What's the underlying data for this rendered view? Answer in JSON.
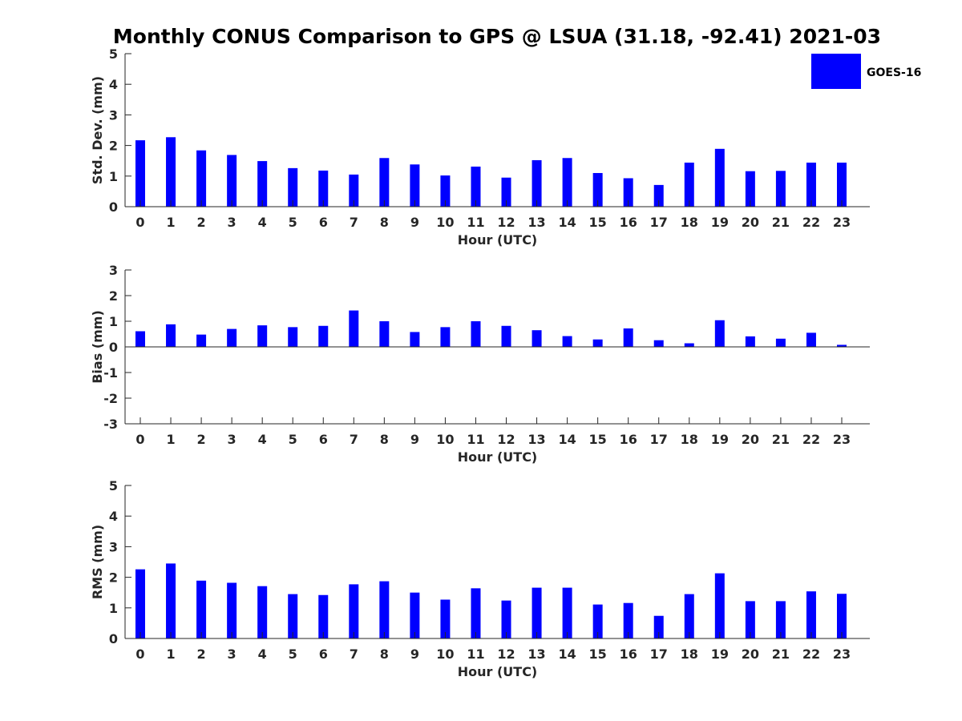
{
  "title": "Monthly CONUS Comparison to GPS @ LSUA (31.18, -92.41) 2021-03",
  "legend": {
    "label": "GOES-16",
    "placement": "top-right"
  },
  "colors": {
    "bar": "#0000ff",
    "axis": "#262626",
    "title": "#000000"
  },
  "chart_data": [
    {
      "type": "bar",
      "series": [
        {
          "name": "GOES-16",
          "values": [
            2.17,
            2.27,
            1.84,
            1.69,
            1.49,
            1.26,
            1.18,
            1.05,
            1.59,
            1.38,
            1.02,
            1.31,
            0.95,
            1.52,
            1.59,
            1.1,
            0.93,
            0.71,
            1.44,
            1.89,
            1.16,
            1.17,
            1.44,
            1.44
          ]
        }
      ],
      "categories": [
        "0",
        "1",
        "2",
        "3",
        "4",
        "5",
        "6",
        "7",
        "8",
        "9",
        "10",
        "11",
        "12",
        "13",
        "14",
        "15",
        "16",
        "17",
        "18",
        "19",
        "20",
        "21",
        "22",
        "23"
      ],
      "xlabel": "Hour (UTC)",
      "ylabel": "Std. Dev. (mm)",
      "ylim": [
        0,
        5
      ],
      "yticks": [
        "0",
        "1",
        "2",
        "3",
        "4",
        "5"
      ],
      "grid": false
    },
    {
      "type": "bar",
      "series": [
        {
          "name": "GOES-16",
          "values": [
            0.61,
            0.88,
            0.48,
            0.7,
            0.84,
            0.77,
            0.82,
            1.42,
            1.0,
            0.58,
            0.77,
            1.0,
            0.82,
            0.65,
            0.42,
            0.29,
            0.72,
            0.26,
            0.14,
            1.04,
            0.41,
            0.32,
            0.55,
            0.08
          ]
        }
      ],
      "categories": [
        "0",
        "1",
        "2",
        "3",
        "4",
        "5",
        "6",
        "7",
        "8",
        "9",
        "10",
        "11",
        "12",
        "13",
        "14",
        "15",
        "16",
        "17",
        "18",
        "19",
        "20",
        "21",
        "22",
        "23"
      ],
      "xlabel": "Hour (UTC)",
      "ylabel": "Bias (mm)",
      "ylim": [
        -3,
        3
      ],
      "yticks": [
        "-3",
        "-2",
        "-1",
        "0",
        "1",
        "2",
        "3"
      ],
      "grid": false
    },
    {
      "type": "bar",
      "series": [
        {
          "name": "GOES-16",
          "values": [
            2.26,
            2.45,
            1.89,
            1.82,
            1.71,
            1.45,
            1.42,
            1.77,
            1.87,
            1.5,
            1.27,
            1.64,
            1.24,
            1.66,
            1.66,
            1.11,
            1.16,
            0.74,
            1.45,
            2.13,
            1.22,
            1.22,
            1.54,
            1.46
          ]
        }
      ],
      "categories": [
        "0",
        "1",
        "2",
        "3",
        "4",
        "5",
        "6",
        "7",
        "8",
        "9",
        "10",
        "11",
        "12",
        "13",
        "14",
        "15",
        "16",
        "17",
        "18",
        "19",
        "20",
        "21",
        "22",
        "23"
      ],
      "xlabel": "Hour (UTC)",
      "ylabel": "RMS (mm)",
      "ylim": [
        0,
        5
      ],
      "yticks": [
        "0",
        "1",
        "2",
        "3",
        "4",
        "5"
      ],
      "grid": false
    }
  ]
}
